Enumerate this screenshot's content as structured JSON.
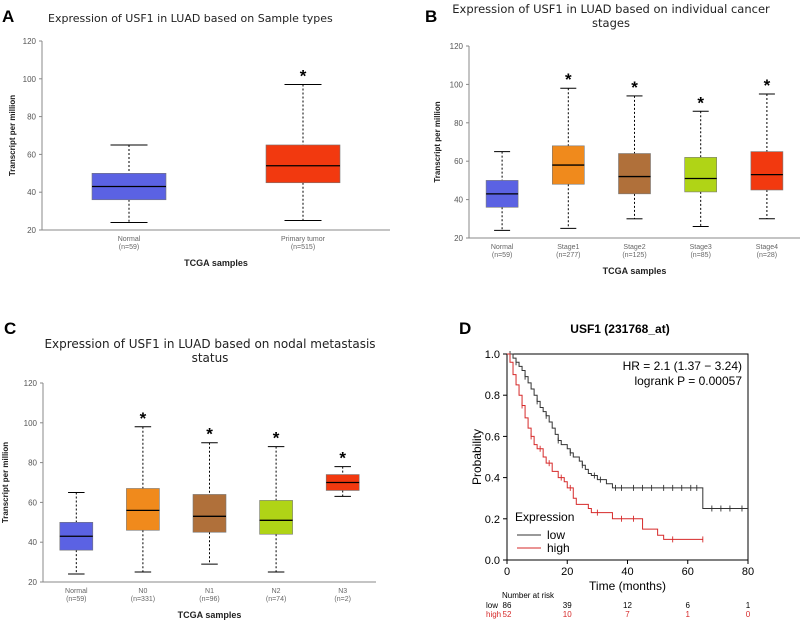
{
  "panels": {
    "A": {
      "letter": "A"
    },
    "B": {
      "letter": "B"
    },
    "C": {
      "letter": "C"
    },
    "D": {
      "letter": "D"
    }
  },
  "chart_data": [
    {
      "id": "A",
      "type": "box",
      "title": "Expression of USF1 in LUAD based on Sample types",
      "xlabel": "TCGA samples",
      "ylabel": "Transcript per million",
      "ylim": [
        20,
        120
      ],
      "yticks": [
        20,
        40,
        60,
        80,
        100,
        120
      ],
      "boxes": [
        {
          "label": "Normal",
          "n": "(n=59)",
          "min": 24,
          "q1": 36,
          "median": 43,
          "q3": 50,
          "max": 65,
          "color": "#5b62e3",
          "star": ""
        },
        {
          "label": "Primary tumor",
          "n": "(n=515)",
          "min": 25,
          "q1": 45,
          "median": 54,
          "q3": 65,
          "max": 97,
          "color": "#f2390f",
          "star": "*"
        }
      ]
    },
    {
      "id": "B",
      "type": "box",
      "title": [
        "Expression of USF1 in LUAD based on individual cancer",
        "stages"
      ],
      "xlabel": "TCGA samples",
      "ylabel": "Transcript per million",
      "ylim": [
        20,
        120
      ],
      "yticks": [
        20,
        40,
        60,
        80,
        100,
        120
      ],
      "boxes": [
        {
          "label": "Normal",
          "n": "(n=59)",
          "min": 24,
          "q1": 36,
          "median": 43,
          "q3": 50,
          "max": 65,
          "color": "#5b62e3",
          "star": ""
        },
        {
          "label": "Stage1",
          "n": "(n=277)",
          "min": 25,
          "q1": 48,
          "median": 58,
          "q3": 68,
          "max": 98,
          "color": "#f08a1c",
          "star": "*"
        },
        {
          "label": "Stage2",
          "n": "(n=125)",
          "min": 30,
          "q1": 43,
          "median": 52,
          "q3": 64,
          "max": 94,
          "color": "#b0703a",
          "star": "*"
        },
        {
          "label": "Stage3",
          "n": "(n=85)",
          "min": 26,
          "q1": 44,
          "median": 51,
          "q3": 62,
          "max": 86,
          "color": "#b0d416",
          "star": "*"
        },
        {
          "label": "Stage4",
          "n": "(n=28)",
          "min": 30,
          "q1": 45,
          "median": 53,
          "q3": 65,
          "max": 95,
          "color": "#f2390f",
          "star": "*"
        }
      ]
    },
    {
      "id": "C",
      "type": "box",
      "title": [
        "Expression of USF1 in LUAD based on nodal metastasis",
        "status"
      ],
      "xlabel": "TCGA samples",
      "ylabel": "Transcript per million",
      "ylim": [
        20,
        120
      ],
      "yticks": [
        20,
        40,
        60,
        80,
        100,
        120
      ],
      "boxes": [
        {
          "label": "Normal",
          "n": "(n=59)",
          "min": 24,
          "q1": 36,
          "median": 43,
          "q3": 50,
          "max": 65,
          "color": "#5b62e3",
          "star": ""
        },
        {
          "label": "N0",
          "n": "(n=331)",
          "min": 25,
          "q1": 46,
          "median": 56,
          "q3": 67,
          "max": 98,
          "color": "#f08a1c",
          "star": "*"
        },
        {
          "label": "N1",
          "n": "(n=96)",
          "min": 29,
          "q1": 45,
          "median": 53,
          "q3": 64,
          "max": 90,
          "color": "#b0703a",
          "star": "*"
        },
        {
          "label": "N2",
          "n": "(n=74)",
          "min": 25,
          "q1": 44,
          "median": 51,
          "q3": 61,
          "max": 88,
          "color": "#b0d416",
          "star": "*"
        },
        {
          "label": "N3",
          "n": "(n=2)",
          "min": 63,
          "q1": 66,
          "median": 70,
          "q3": 74,
          "max": 78,
          "color": "#f2390f",
          "star": "*"
        }
      ]
    },
    {
      "id": "D",
      "type": "kaplan-meier",
      "title": "USF1 (231768_at)",
      "xlabel": "Time (months)",
      "ylabel": "Probability",
      "xlim": [
        0,
        80
      ],
      "ylim": [
        0,
        1
      ],
      "xticks": [
        0,
        20,
        40,
        60,
        80
      ],
      "yticks": [
        "0.0",
        "0.2",
        "0.4",
        "0.6",
        "0.8",
        "1.0"
      ],
      "hr_text": "HR = 2.1 (1.37 − 3.24)",
      "logrank_text": "logrank P = 0.00057",
      "legend_title": "Expression",
      "series": [
        {
          "name": "low",
          "color": "#333333",
          "steps": [
            [
              0,
              1.0
            ],
            [
              2,
              0.98
            ],
            [
              3,
              0.96
            ],
            [
              4,
              0.94
            ],
            [
              5,
              0.92
            ],
            [
              6,
              0.89
            ],
            [
              7,
              0.86
            ],
            [
              8,
              0.83
            ],
            [
              9,
              0.8
            ],
            [
              10,
              0.77
            ],
            [
              11,
              0.74
            ],
            [
              12,
              0.72
            ],
            [
              13,
              0.7
            ],
            [
              14,
              0.67
            ],
            [
              15,
              0.64
            ],
            [
              16,
              0.61
            ],
            [
              17,
              0.58
            ],
            [
              18,
              0.56
            ],
            [
              20,
              0.54
            ],
            [
              21,
              0.52
            ],
            [
              22,
              0.5
            ],
            [
              24,
              0.48
            ],
            [
              25,
              0.46
            ],
            [
              26,
              0.44
            ],
            [
              27,
              0.42
            ],
            [
              28,
              0.41
            ],
            [
              30,
              0.39
            ],
            [
              33,
              0.37
            ],
            [
              35,
              0.35
            ],
            [
              65,
              0.25
            ],
            [
              80,
              0.25
            ]
          ],
          "censor": [
            [
              1,
              1.0
            ],
            [
              3,
              0.96
            ],
            [
              6,
              0.89
            ],
            [
              10,
              0.77
            ],
            [
              13,
              0.7
            ],
            [
              17,
              0.58
            ],
            [
              21,
              0.52
            ],
            [
              25,
              0.46
            ],
            [
              29,
              0.41
            ],
            [
              31,
              0.39
            ],
            [
              36,
              0.35
            ],
            [
              38,
              0.35
            ],
            [
              42,
              0.35
            ],
            [
              45,
              0.35
            ],
            [
              48,
              0.35
            ],
            [
              52,
              0.35
            ],
            [
              55,
              0.35
            ],
            [
              58,
              0.35
            ],
            [
              61,
              0.35
            ],
            [
              63,
              0.35
            ],
            [
              68,
              0.25
            ],
            [
              71,
              0.25
            ],
            [
              74,
              0.25
            ],
            [
              78,
              0.25
            ]
          ]
        },
        {
          "name": "high",
          "color": "#d62a2a",
          "steps": [
            [
              0,
              1.0
            ],
            [
              1,
              0.96
            ],
            [
              2,
              0.9
            ],
            [
              3,
              0.85
            ],
            [
              4,
              0.8
            ],
            [
              5,
              0.75
            ],
            [
              6,
              0.69
            ],
            [
              7,
              0.64
            ],
            [
              8,
              0.6
            ],
            [
              9,
              0.56
            ],
            [
              10,
              0.54
            ],
            [
              12,
              0.5
            ],
            [
              13,
              0.47
            ],
            [
              15,
              0.43
            ],
            [
              17,
              0.4
            ],
            [
              19,
              0.38
            ],
            [
              20,
              0.35
            ],
            [
              22,
              0.3
            ],
            [
              23,
              0.27
            ],
            [
              27,
              0.25
            ],
            [
              28,
              0.23
            ],
            [
              35,
              0.2
            ],
            [
              45,
              0.15
            ],
            [
              50,
              0.12
            ],
            [
              52,
              0.1
            ],
            [
              65,
              0.1
            ]
          ],
          "censor": [
            [
              5,
              0.75
            ],
            [
              8,
              0.6
            ],
            [
              11,
              0.54
            ],
            [
              14,
              0.47
            ],
            [
              18,
              0.4
            ],
            [
              21,
              0.35
            ],
            [
              30,
              0.23
            ],
            [
              38,
              0.2
            ],
            [
              42,
              0.2
            ],
            [
              55,
              0.1
            ],
            [
              65,
              0.1
            ]
          ]
        }
      ],
      "risk_table": {
        "header": "Number at risk",
        "rows": [
          {
            "label": "low",
            "values": [
              "86",
              "39",
              "12",
              "6",
              "1"
            ],
            "color": "#000000"
          },
          {
            "label": "high",
            "values": [
              "52",
              "10",
              "7",
              "1",
              "0"
            ],
            "color": "#d62a2a"
          }
        ]
      }
    }
  ]
}
